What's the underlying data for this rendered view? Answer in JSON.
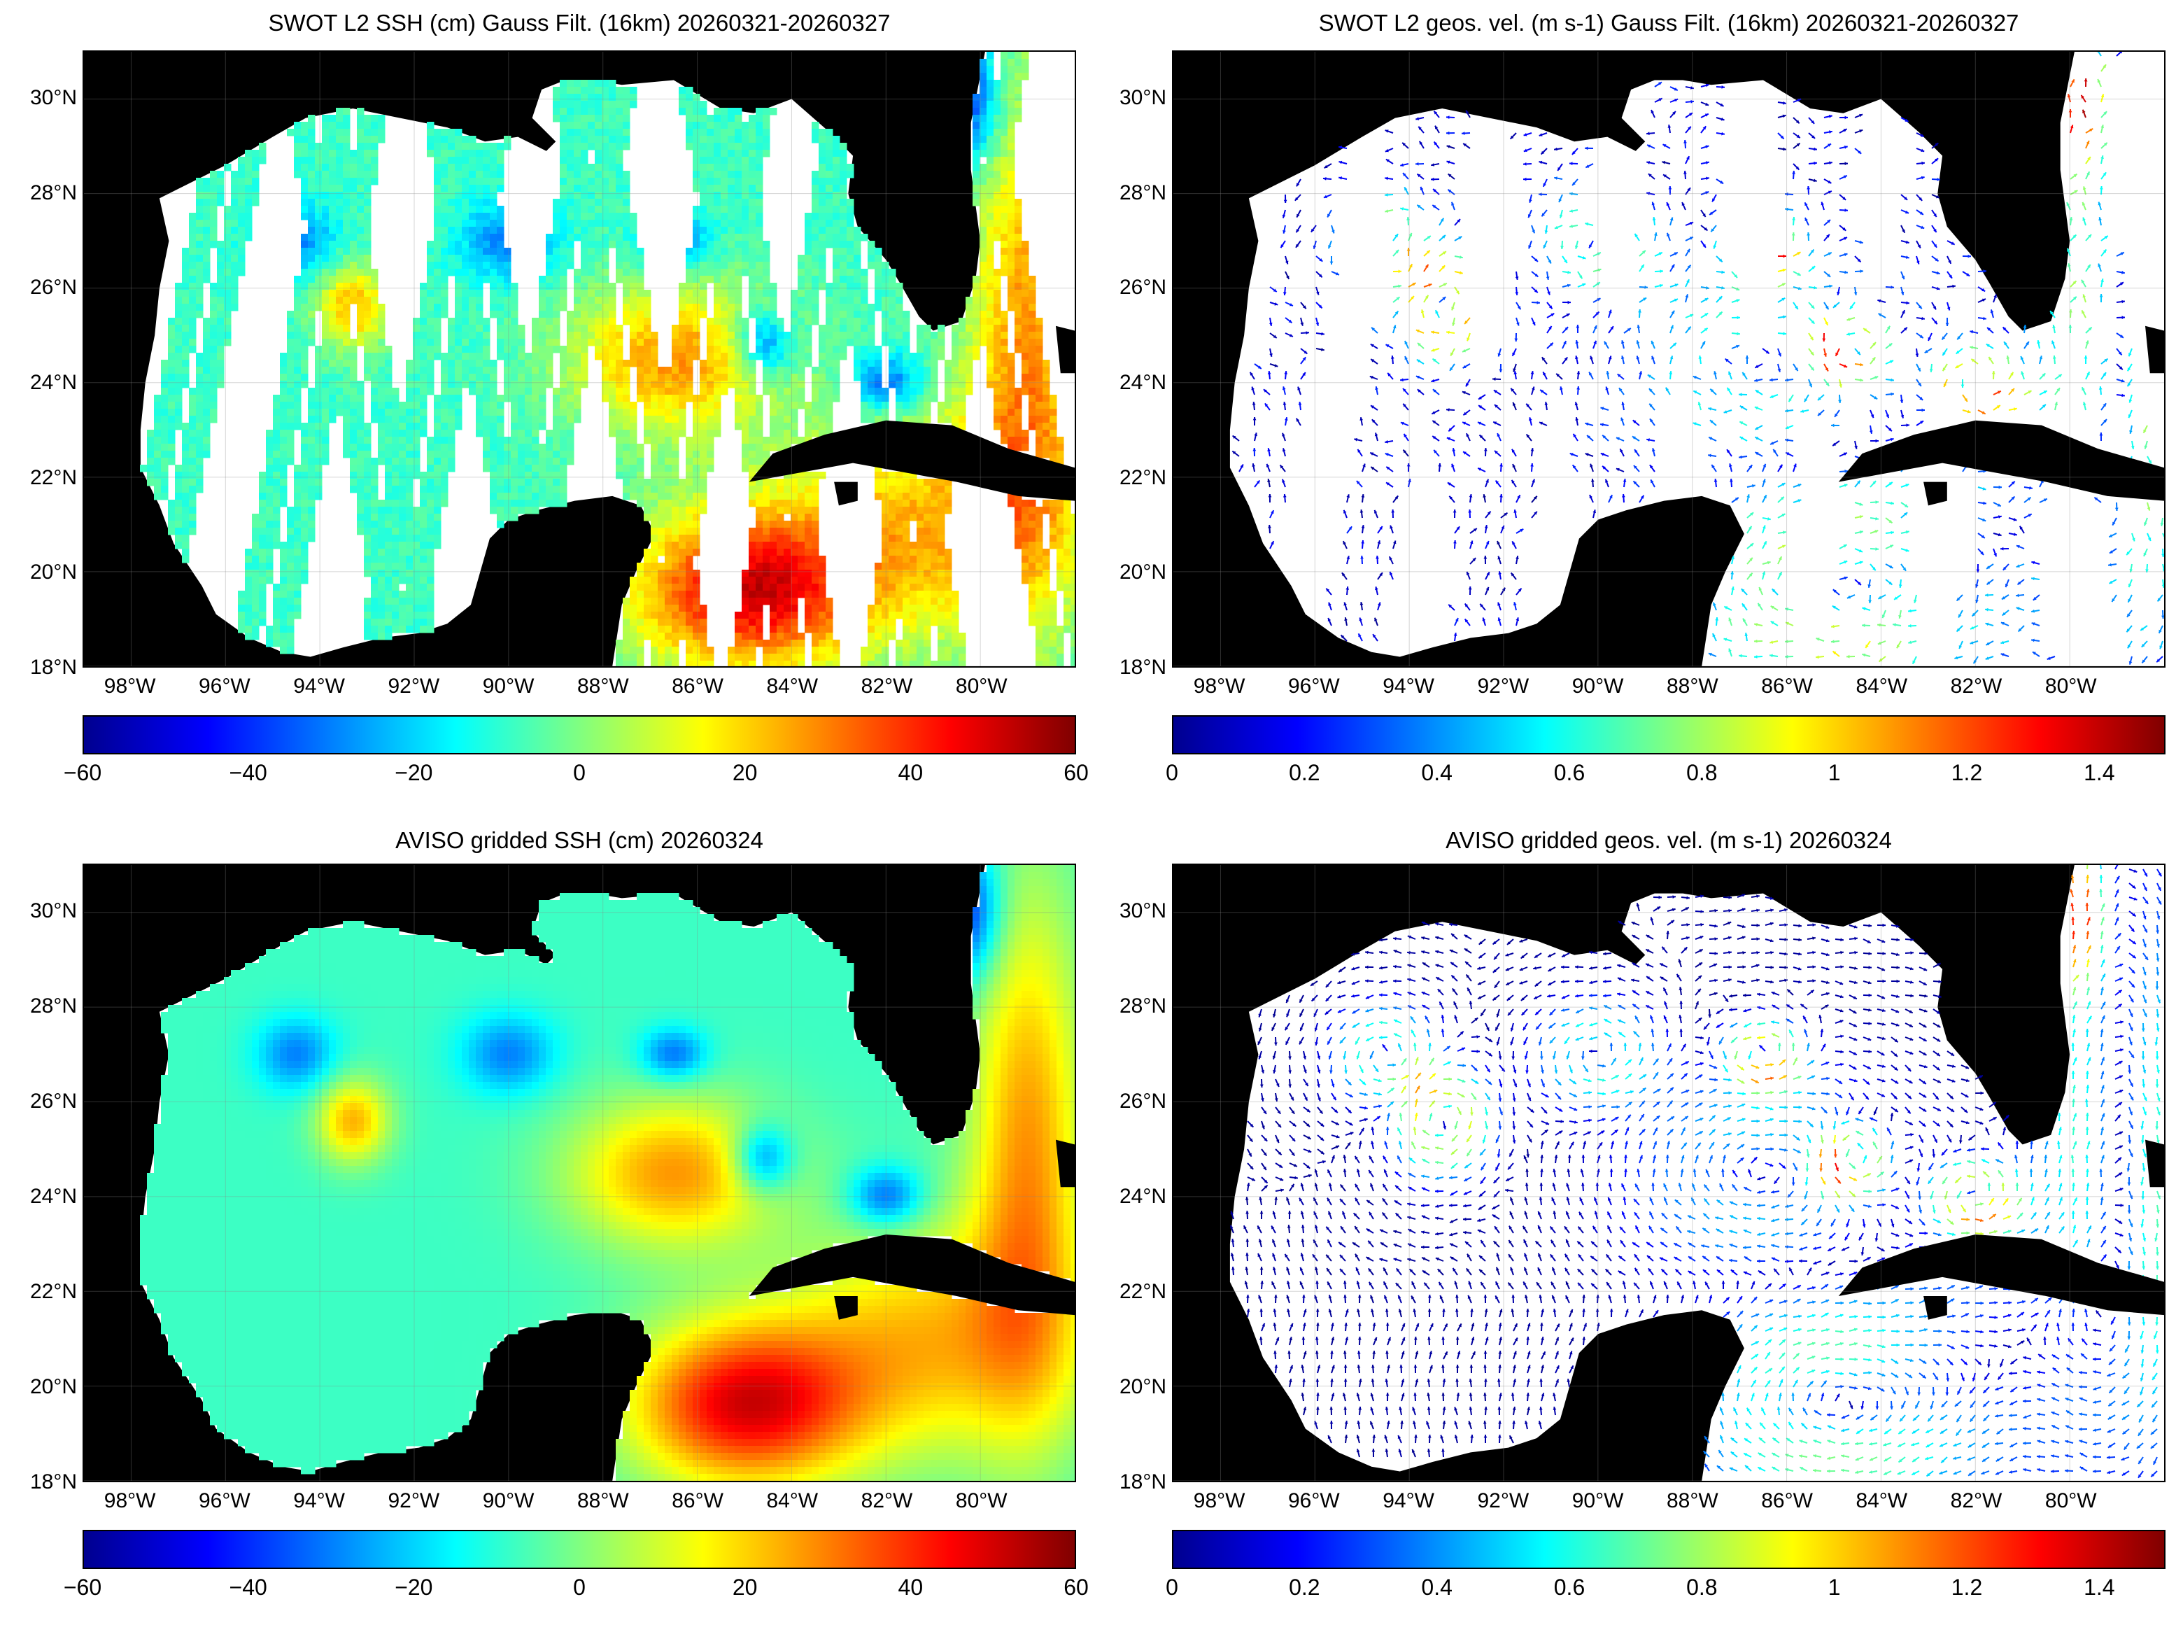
{
  "panels": [
    {
      "title": "SWOT L2 SSH (cm) Gauss Filt. (16km) 20260321-20260327",
      "kind": "swath-ssh",
      "colorbar_ticks": [
        "−60",
        "−40",
        "−20",
        "0",
        "20",
        "40",
        "60"
      ]
    },
    {
      "title": "SWOT L2 geos. vel. (m s-1) Gauss Filt. (16km) 20260321-20260327",
      "kind": "swath-vel",
      "colorbar_ticks": [
        "0",
        "0.2",
        "0.4",
        "0.6",
        "0.8",
        "1",
        "1.2",
        "1.4"
      ]
    },
    {
      "title": "AVISO gridded SSH (cm) 20260324",
      "kind": "grid-ssh",
      "colorbar_ticks": [
        "−60",
        "−40",
        "−20",
        "0",
        "20",
        "40",
        "60"
      ]
    },
    {
      "title": "AVISO gridded geos. vel. (m s-1)  20260324",
      "kind": "grid-vel",
      "colorbar_ticks": [
        "0",
        "0.2",
        "0.4",
        "0.6",
        "0.8",
        "1",
        "1.2",
        "1.4"
      ]
    }
  ],
  "lat_ticks": [
    "30°N",
    "28°N",
    "26°N",
    "24°N",
    "22°N",
    "20°N",
    "18°N"
  ],
  "lon_ticks": [
    "98°W",
    "96°W",
    "94°W",
    "92°W",
    "90°W",
    "88°W",
    "86°W",
    "84°W",
    "82°W",
    "80°W"
  ],
  "colormap": [
    "#00008f",
    "#0000ff",
    "#0080ff",
    "#00ffff",
    "#80ff80",
    "#ffff00",
    "#ff8000",
    "#ff0000",
    "#800000"
  ],
  "land_color": "#000000",
  "ocean_nodata_color": "#ffffff"
}
